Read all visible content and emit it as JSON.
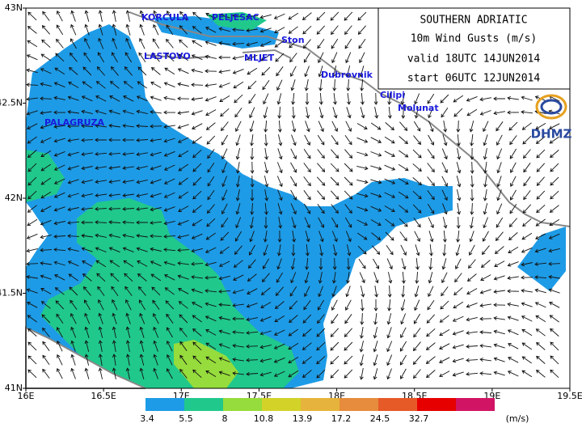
{
  "map": {
    "title_lines": [
      "SOUTHERN ADRIATIC",
      "10m Wind Gusts (m/s)",
      "valid 18UTC 14JUN2014",
      "start 06UTC 12JUN2014"
    ],
    "logo": "DHMZ",
    "places": [
      "KORCULA",
      "PELJESAC",
      "Ston",
      "LASTOVO",
      "MLJET",
      "Dubrovnik",
      "Cilipi",
      "Molunat",
      "PALAGRUZA"
    ],
    "xticks": [
      {
        "value": 16,
        "label": "16E"
      },
      {
        "value": 16.5,
        "label": "16.5E"
      },
      {
        "value": 17,
        "label": "17E"
      },
      {
        "value": 17.5,
        "label": "17.5E"
      },
      {
        "value": 18,
        "label": "18E"
      },
      {
        "value": 18.5,
        "label": "18.5E"
      },
      {
        "value": 19,
        "label": "19E"
      },
      {
        "value": 19.5,
        "label": "19.5E"
      }
    ],
    "yticks": [
      {
        "value": 41,
        "label": "41N"
      },
      {
        "value": 41.5,
        "label": "41.5N"
      },
      {
        "value": 42,
        "label": "42N"
      },
      {
        "value": 42.5,
        "label": "42.5N"
      },
      {
        "value": 43,
        "label": "43N"
      }
    ],
    "xlim": [
      16,
      19.5
    ],
    "ylim": [
      41,
      43
    ],
    "colorbar": {
      "levels": [
        3.4,
        5.5,
        8,
        10.8,
        13.9,
        17.2,
        24.5,
        32.7
      ],
      "colors": [
        "#1e9be6",
        "#20c88c",
        "#96dc3c",
        "#d2d228",
        "#e6b43c",
        "#e68c3c",
        "#e65a28",
        "#e60000",
        "#d21464"
      ],
      "unit": "(m/s)"
    }
  }
}
